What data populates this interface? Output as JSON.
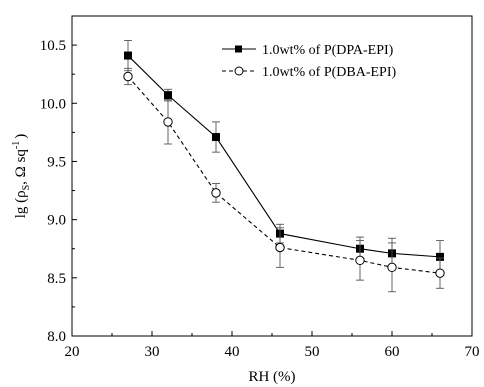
{
  "chart_data": {
    "type": "line",
    "xlabel": "RH (%)",
    "ylabel": {
      "base": "lg (ρ",
      "sub": "S",
      "mid": ", Ω sq",
      "sup": "-1",
      "end": ")"
    },
    "xlim": [
      20,
      70
    ],
    "ylim": [
      8.0,
      10.75
    ],
    "xticks": [
      20,
      30,
      40,
      50,
      60,
      70
    ],
    "yticks": [
      8.0,
      8.5,
      9.0,
      9.5,
      10.0,
      10.5
    ],
    "xtick_labels": [
      "20",
      "30",
      "40",
      "50",
      "60",
      "70"
    ],
    "ytick_labels": [
      "8.0",
      "8.5",
      "9.0",
      "9.5",
      "10.0",
      "10.5"
    ],
    "grid": false,
    "legend_position": "top-right",
    "series": [
      {
        "name": "1.0wt% of P(DPA-EPI)",
        "marker": "filled-square",
        "line_style": "solid",
        "color": "#000000",
        "x": [
          27,
          32,
          38,
          46,
          56,
          60,
          66
        ],
        "y": [
          10.41,
          10.07,
          9.71,
          8.88,
          8.75,
          8.71,
          8.68
        ],
        "err": [
          0.13,
          0.05,
          0.13,
          0.08,
          0.1,
          0.13,
          0.14
        ]
      },
      {
        "name": "1.0wt% of P(DBA-EPI)",
        "marker": "open-circle",
        "line_style": "dashed",
        "color": "#000000",
        "x": [
          27,
          32,
          38,
          46,
          56,
          60,
          66
        ],
        "y": [
          10.23,
          9.84,
          9.23,
          8.76,
          8.65,
          8.59,
          8.54
        ],
        "err": [
          0.07,
          0.19,
          0.08,
          0.17,
          0.17,
          0.21,
          0.13
        ]
      }
    ]
  }
}
